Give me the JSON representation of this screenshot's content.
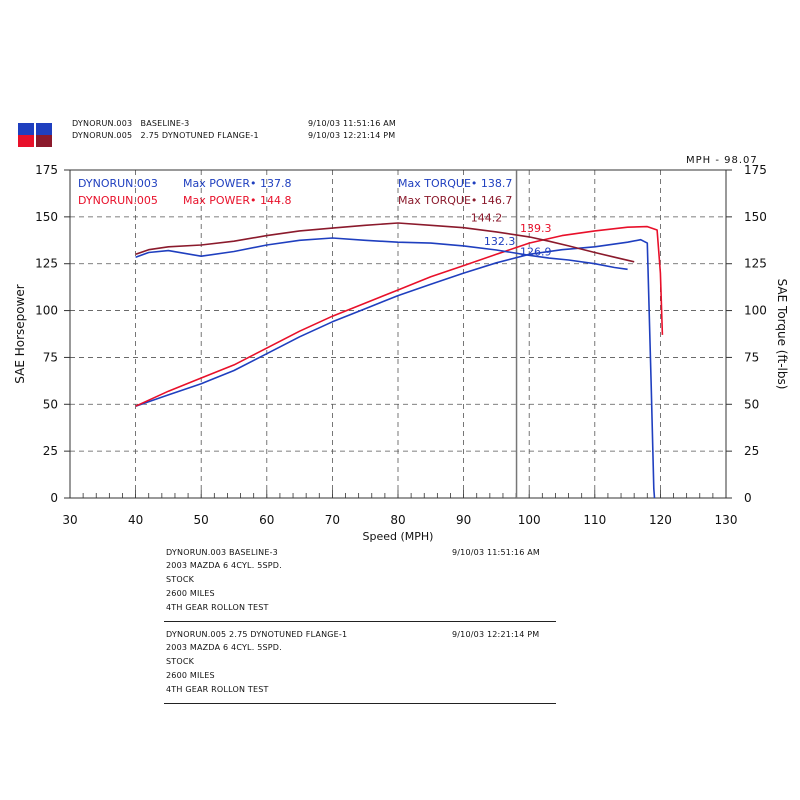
{
  "header": {
    "runs": [
      {
        "name": "DYNORUN.003",
        "desc": "BASELINE-3",
        "date": "9/10/03 11:51:16 AM"
      },
      {
        "name": "DYNORUN.005",
        "desc": "2.75 DYNOTUNED FLANGE-1",
        "date": "9/10/03 12:21:14 PM"
      }
    ],
    "mph_readout": "MPH - 98.07",
    "swatch_colors": [
      "#1f3fbf",
      "#1f3fbf",
      "#e8102a",
      "#8b1a2c"
    ]
  },
  "chart_data": {
    "type": "line",
    "xlabel": "Speed (MPH)",
    "ylabel": "SAE Horsepower",
    "y2label": "SAE Torque (ft-lbs)",
    "xlim": [
      30,
      130
    ],
    "ylim": [
      0,
      175
    ],
    "xticks": [
      30,
      40,
      50,
      60,
      70,
      80,
      90,
      100,
      110,
      120,
      130
    ],
    "yticks": [
      0,
      25,
      50,
      75,
      100,
      125,
      150,
      175
    ],
    "grid": true,
    "cursor_x": 98.07,
    "legend": [
      {
        "run": "DYNORUN.003",
        "power": "Max POWER• 137.8",
        "torque": "Max TORQUE• 138.7",
        "color": "#1f3fbf"
      },
      {
        "run": "DYNORUN.005",
        "power": "Max POWER• 144.8",
        "torque": "Max TORQUE• 146.7",
        "color": "#e8102a"
      }
    ],
    "series": [
      {
        "name": "DYNORUN.003",
        "kind": "power",
        "color": "#1f3fbf",
        "x": [
          40,
          45,
          50,
          55,
          60,
          65,
          70,
          75,
          80,
          85,
          90,
          95,
          100,
          105,
          110,
          115,
          117,
          118,
          118.6,
          119,
          119.1
        ],
        "y": [
          49,
          55,
          61,
          68,
          77,
          86,
          94,
          101,
          108,
          114,
          120,
          125.5,
          130,
          132.5,
          134,
          136.5,
          137.8,
          136,
          60,
          5,
          0
        ]
      },
      {
        "name": "DYNORUN.005",
        "kind": "power",
        "color": "#e8102a",
        "x": [
          40,
          45,
          50,
          55,
          60,
          65,
          70,
          75,
          80,
          85,
          90,
          95,
          100,
          105,
          110,
          115,
          118,
          119.5,
          120,
          120.3
        ],
        "y": [
          49,
          57,
          64,
          71,
          80,
          89,
          97,
          104,
          111,
          118,
          124,
          130,
          136,
          140,
          142.5,
          144.5,
          144.8,
          143,
          120,
          87
        ]
      },
      {
        "name": "DYNORUN.003",
        "kind": "torque",
        "color": "#1f3fbf",
        "x": [
          40,
          42,
          45,
          50,
          55,
          60,
          65,
          70,
          75,
          80,
          85,
          90,
          95,
          100,
          103,
          106,
          110,
          113,
          115
        ],
        "y": [
          128.5,
          131,
          132,
          129,
          131.5,
          135,
          137.5,
          138.7,
          137.5,
          136.5,
          136,
          134.5,
          132.3,
          129.5,
          128,
          127,
          125,
          123,
          122
        ]
      },
      {
        "name": "DYNORUN.005",
        "kind": "torque",
        "color": "#8b1a2c",
        "x": [
          40,
          42,
          45,
          50,
          55,
          60,
          65,
          70,
          75,
          80,
          85,
          90,
          95,
          100,
          103,
          106,
          110,
          113,
          116
        ],
        "y": [
          130,
          132.5,
          134,
          135,
          137,
          140,
          142.5,
          144,
          145.5,
          146.7,
          145.5,
          144.2,
          142,
          139.3,
          137,
          134.5,
          131,
          128.5,
          126
        ]
      }
    ],
    "annotations": [
      {
        "text": "144.2",
        "x": 93.5,
        "y": 147.6,
        "color": "#8b1a2c"
      },
      {
        "text": "139.3",
        "x": 101.0,
        "y": 142.0,
        "color": "#e8102a"
      },
      {
        "text": "132.3",
        "x": 95.5,
        "y": 135.0,
        "color": "#1f3fbf"
      },
      {
        "text": "126.9",
        "x": 101.0,
        "y": 129.5,
        "color": "#1f3fbf"
      }
    ]
  },
  "notes": [
    {
      "title": "DYNORUN.003   BASELINE-3",
      "date": "9/10/03 11:51:16 AM",
      "lines": [
        "2003 MAZDA 6 4CYL. 5SPD.",
        "STOCK",
        "2600 MILES",
        "4TH GEAR ROLLON TEST"
      ]
    },
    {
      "title": "DYNORUN.005   2.75 DYNOTUNED FLANGE-1",
      "date": "9/10/03 12:21:14 PM",
      "lines": [
        "2003 MAZDA 6 4CYL. 5SPD.",
        "STOCK",
        "2600 MILES",
        "4TH GEAR ROLLON TEST"
      ]
    }
  ]
}
